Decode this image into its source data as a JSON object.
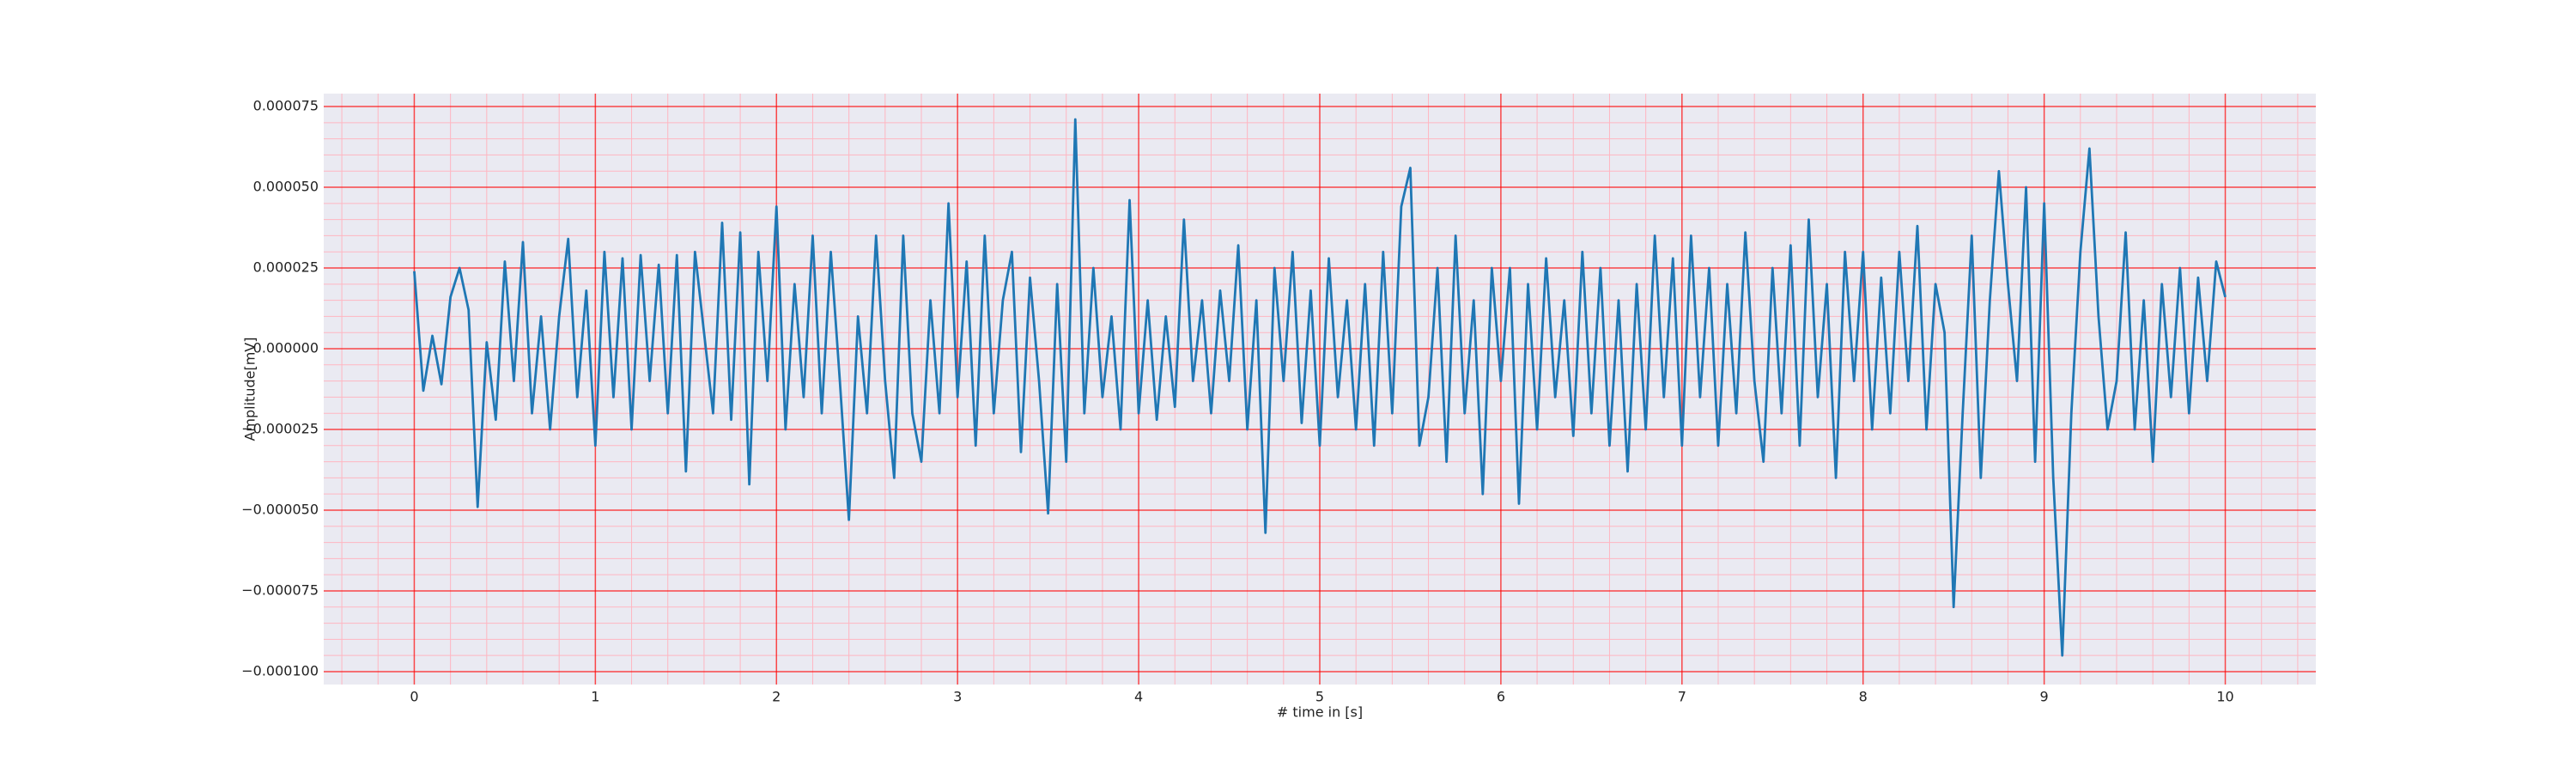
{
  "chart_data": {
    "type": "line",
    "xlabel": "# time in [s]",
    "ylabel": "Amplitude[mV]",
    "x": [
      0,
      0.05,
      0.1,
      0.15,
      0.2,
      0.25,
      0.3,
      0.35,
      0.4,
      0.45,
      0.5,
      0.55,
      0.6,
      0.65,
      0.7,
      0.75,
      0.8,
      0.85,
      0.9,
      0.95,
      1,
      1.05,
      1.1,
      1.15,
      1.2,
      1.25,
      1.3,
      1.35,
      1.4,
      1.45,
      1.5,
      1.55,
      1.6,
      1.65,
      1.7,
      1.75,
      1.8,
      1.85,
      1.9,
      1.95,
      2,
      2.05,
      2.1,
      2.15,
      2.2,
      2.25,
      2.3,
      2.35,
      2.4,
      2.45,
      2.5,
      2.55,
      2.6,
      2.65,
      2.7,
      2.75,
      2.8,
      2.85,
      2.9,
      2.95,
      3,
      3.05,
      3.1,
      3.15,
      3.2,
      3.25,
      3.3,
      3.35,
      3.4,
      3.45,
      3.5,
      3.55,
      3.6,
      3.65,
      3.7,
      3.75,
      3.8,
      3.85,
      3.9,
      3.95,
      4,
      4.05,
      4.1,
      4.15,
      4.2,
      4.25,
      4.3,
      4.35,
      4.4,
      4.45,
      4.5,
      4.55,
      4.6,
      4.65,
      4.7,
      4.75,
      4.8,
      4.85,
      4.9,
      4.95,
      5,
      5.05,
      5.1,
      5.15,
      5.2,
      5.25,
      5.3,
      5.35,
      5.4,
      5.45,
      5.5,
      5.55,
      5.6,
      5.65,
      5.7,
      5.75,
      5.8,
      5.85,
      5.9,
      5.95,
      6,
      6.05,
      6.1,
      6.15,
      6.2,
      6.25,
      6.3,
      6.35,
      6.4,
      6.45,
      6.5,
      6.55,
      6.6,
      6.65,
      6.7,
      6.75,
      6.8,
      6.85,
      6.9,
      6.95,
      7,
      7.05,
      7.1,
      7.15,
      7.2,
      7.25,
      7.3,
      7.35,
      7.4,
      7.45,
      7.5,
      7.55,
      7.6,
      7.65,
      7.7,
      7.75,
      7.8,
      7.85,
      7.9,
      7.95,
      8,
      8.05,
      8.1,
      8.15,
      8.2,
      8.25,
      8.3,
      8.35,
      8.4,
      8.45,
      8.5,
      8.55,
      8.6,
      8.65,
      8.7,
      8.75,
      8.8,
      8.85,
      8.9,
      8.95,
      9,
      9.05,
      9.1,
      9.15,
      9.2,
      9.25,
      9.3,
      9.35,
      9.4,
      9.45,
      9.5,
      9.55,
      9.6,
      9.65,
      9.7,
      9.75,
      9.8,
      9.85,
      9.9,
      9.95,
      10
    ],
    "series": [
      {
        "color": "#1f77b4",
        "values": [
          2.4e-05,
          -1.3e-05,
          4e-06,
          -1.1e-05,
          1.6e-05,
          2.5e-05,
          1.2e-05,
          -4.9e-05,
          2e-06,
          -2.2e-05,
          2.7e-05,
          -1e-05,
          3.3e-05,
          -2e-05,
          1e-05,
          -2.5e-05,
          1e-05,
          3.4e-05,
          -1.5e-05,
          1.8e-05,
          -3e-05,
          3e-05,
          -1.5e-05,
          2.8e-05,
          -2.5e-05,
          2.9e-05,
          -1e-05,
          2.6e-05,
          -2e-05,
          2.9e-05,
          -3.8e-05,
          3e-05,
          5e-06,
          -2e-05,
          3.9e-05,
          -2.2e-05,
          3.6e-05,
          -4.2e-05,
          3e-05,
          -1e-05,
          4.4e-05,
          -2.5e-05,
          2e-05,
          -1.5e-05,
          3.5e-05,
          -2e-05,
          3e-05,
          -1e-05,
          -5.3e-05,
          1e-05,
          -2e-05,
          3.5e-05,
          -1e-05,
          -4e-05,
          3.5e-05,
          -2e-05,
          -3.5e-05,
          1.5e-05,
          -2e-05,
          4.5e-05,
          -1.5e-05,
          2.7e-05,
          -3e-05,
          3.5e-05,
          -2e-05,
          1.5e-05,
          3e-05,
          -3.2e-05,
          2.2e-05,
          -1e-05,
          -5.1e-05,
          2e-05,
          -3.5e-05,
          7.1e-05,
          -2e-05,
          2.5e-05,
          -1.5e-05,
          1e-05,
          -2.5e-05,
          4.6e-05,
          -2e-05,
          1.5e-05,
          -2.2e-05,
          1e-05,
          -1.8e-05,
          4e-05,
          -1e-05,
          1.5e-05,
          -2e-05,
          1.8e-05,
          -1e-05,
          3.2e-05,
          -2.5e-05,
          1.5e-05,
          -5.7e-05,
          2.5e-05,
          -1e-05,
          3e-05,
          -2.3e-05,
          1.8e-05,
          -3e-05,
          2.8e-05,
          -1.5e-05,
          1.5e-05,
          -2.5e-05,
          2e-05,
          -3e-05,
          3e-05,
          -2e-05,
          4.4e-05,
          5.6e-05,
          -3e-05,
          -1.5e-05,
          2.5e-05,
          -3.5e-05,
          3.5e-05,
          -2e-05,
          1.5e-05,
          -4.5e-05,
          2.5e-05,
          -1e-05,
          2.5e-05,
          -4.8e-05,
          2e-05,
          -2.5e-05,
          2.8e-05,
          -1.5e-05,
          1.5e-05,
          -2.7e-05,
          3e-05,
          -2e-05,
          2.5e-05,
          -3e-05,
          1.5e-05,
          -3.8e-05,
          2e-05,
          -2.5e-05,
          3.5e-05,
          -1.5e-05,
          2.8e-05,
          -3e-05,
          3.5e-05,
          -1.5e-05,
          2.5e-05,
          -3e-05,
          2e-05,
          -2e-05,
          3.6e-05,
          -1e-05,
          -3.5e-05,
          2.5e-05,
          -2e-05,
          3.2e-05,
          -3e-05,
          4e-05,
          -1.5e-05,
          2e-05,
          -4e-05,
          3e-05,
          -1e-05,
          3e-05,
          -2.5e-05,
          2.2e-05,
          -2e-05,
          3e-05,
          -1e-05,
          3.8e-05,
          -2.5e-05,
          2e-05,
          5e-06,
          -8e-05,
          -2e-05,
          3.5e-05,
          -4e-05,
          1.5e-05,
          5.5e-05,
          2e-05,
          -1e-05,
          5e-05,
          -3.5e-05,
          4.5e-05,
          -4e-05,
          -9.5e-05,
          -2e-05,
          3e-05,
          6.2e-05,
          1e-05,
          -2.5e-05,
          -1e-05,
          3.6e-05,
          -2.5e-05,
          1.5e-05,
          -3.5e-05,
          2e-05,
          -1.5e-05,
          2.5e-05,
          -2e-05,
          2.2e-05,
          -1e-05,
          2.7e-05,
          1.6e-05
        ]
      }
    ],
    "xlim": [
      -0.5,
      10.5
    ],
    "xticks": [
      0,
      1,
      2,
      3,
      4,
      5,
      6,
      7,
      8,
      9,
      10
    ],
    "ylim": [
      -0.000104,
      7.9e-05
    ],
    "yticks": [
      {
        "value": -0.0001,
        "label": "−0.000100"
      },
      {
        "value": -7.5e-05,
        "label": "−0.000075"
      },
      {
        "value": -5e-05,
        "label": "−0.000050"
      },
      {
        "value": -2.5e-05,
        "label": "−0.000025"
      },
      {
        "value": 0,
        "label": "0.000000"
      },
      {
        "value": 2.5e-05,
        "label": "0.000025"
      },
      {
        "value": 5e-05,
        "label": "0.000050"
      },
      {
        "value": 7.5e-05,
        "label": "0.000075"
      }
    ],
    "xminorticks": [
      -0.4,
      -0.2,
      0.2,
      0.4,
      0.6,
      0.8,
      1.2,
      1.4,
      1.6,
      1.8,
      2.2,
      2.4,
      2.6,
      2.8,
      3.2,
      3.4,
      3.6,
      3.8,
      4.2,
      4.4,
      4.6,
      4.8,
      5.2,
      5.4,
      5.6,
      5.8,
      6.2,
      6.4,
      6.6,
      6.8,
      7.2,
      7.4,
      7.6,
      7.8,
      8.2,
      8.4,
      8.6,
      8.8,
      9.2,
      9.4,
      9.6,
      9.8,
      10.2,
      10.4
    ],
    "yminorticks": [
      -9.5e-05,
      -9e-05,
      -8.5e-05,
      -8e-05,
      -7e-05,
      -6.5e-05,
      -6e-05,
      -5.5e-05,
      -4.5e-05,
      -4e-05,
      -3.5e-05,
      -3e-05,
      -2e-05,
      -1.5e-05,
      -1e-05,
      -5e-06,
      5e-06,
      1e-05,
      1.5e-05,
      2e-05,
      3e-05,
      3.5e-05,
      4e-05,
      4.5e-05,
      5.5e-05,
      6e-05,
      6.5e-05,
      7e-05
    ],
    "grid": true,
    "grid_color": "#ff0000",
    "minor_grid_color": "#ffb6c1",
    "background": "#eaeaf2"
  }
}
